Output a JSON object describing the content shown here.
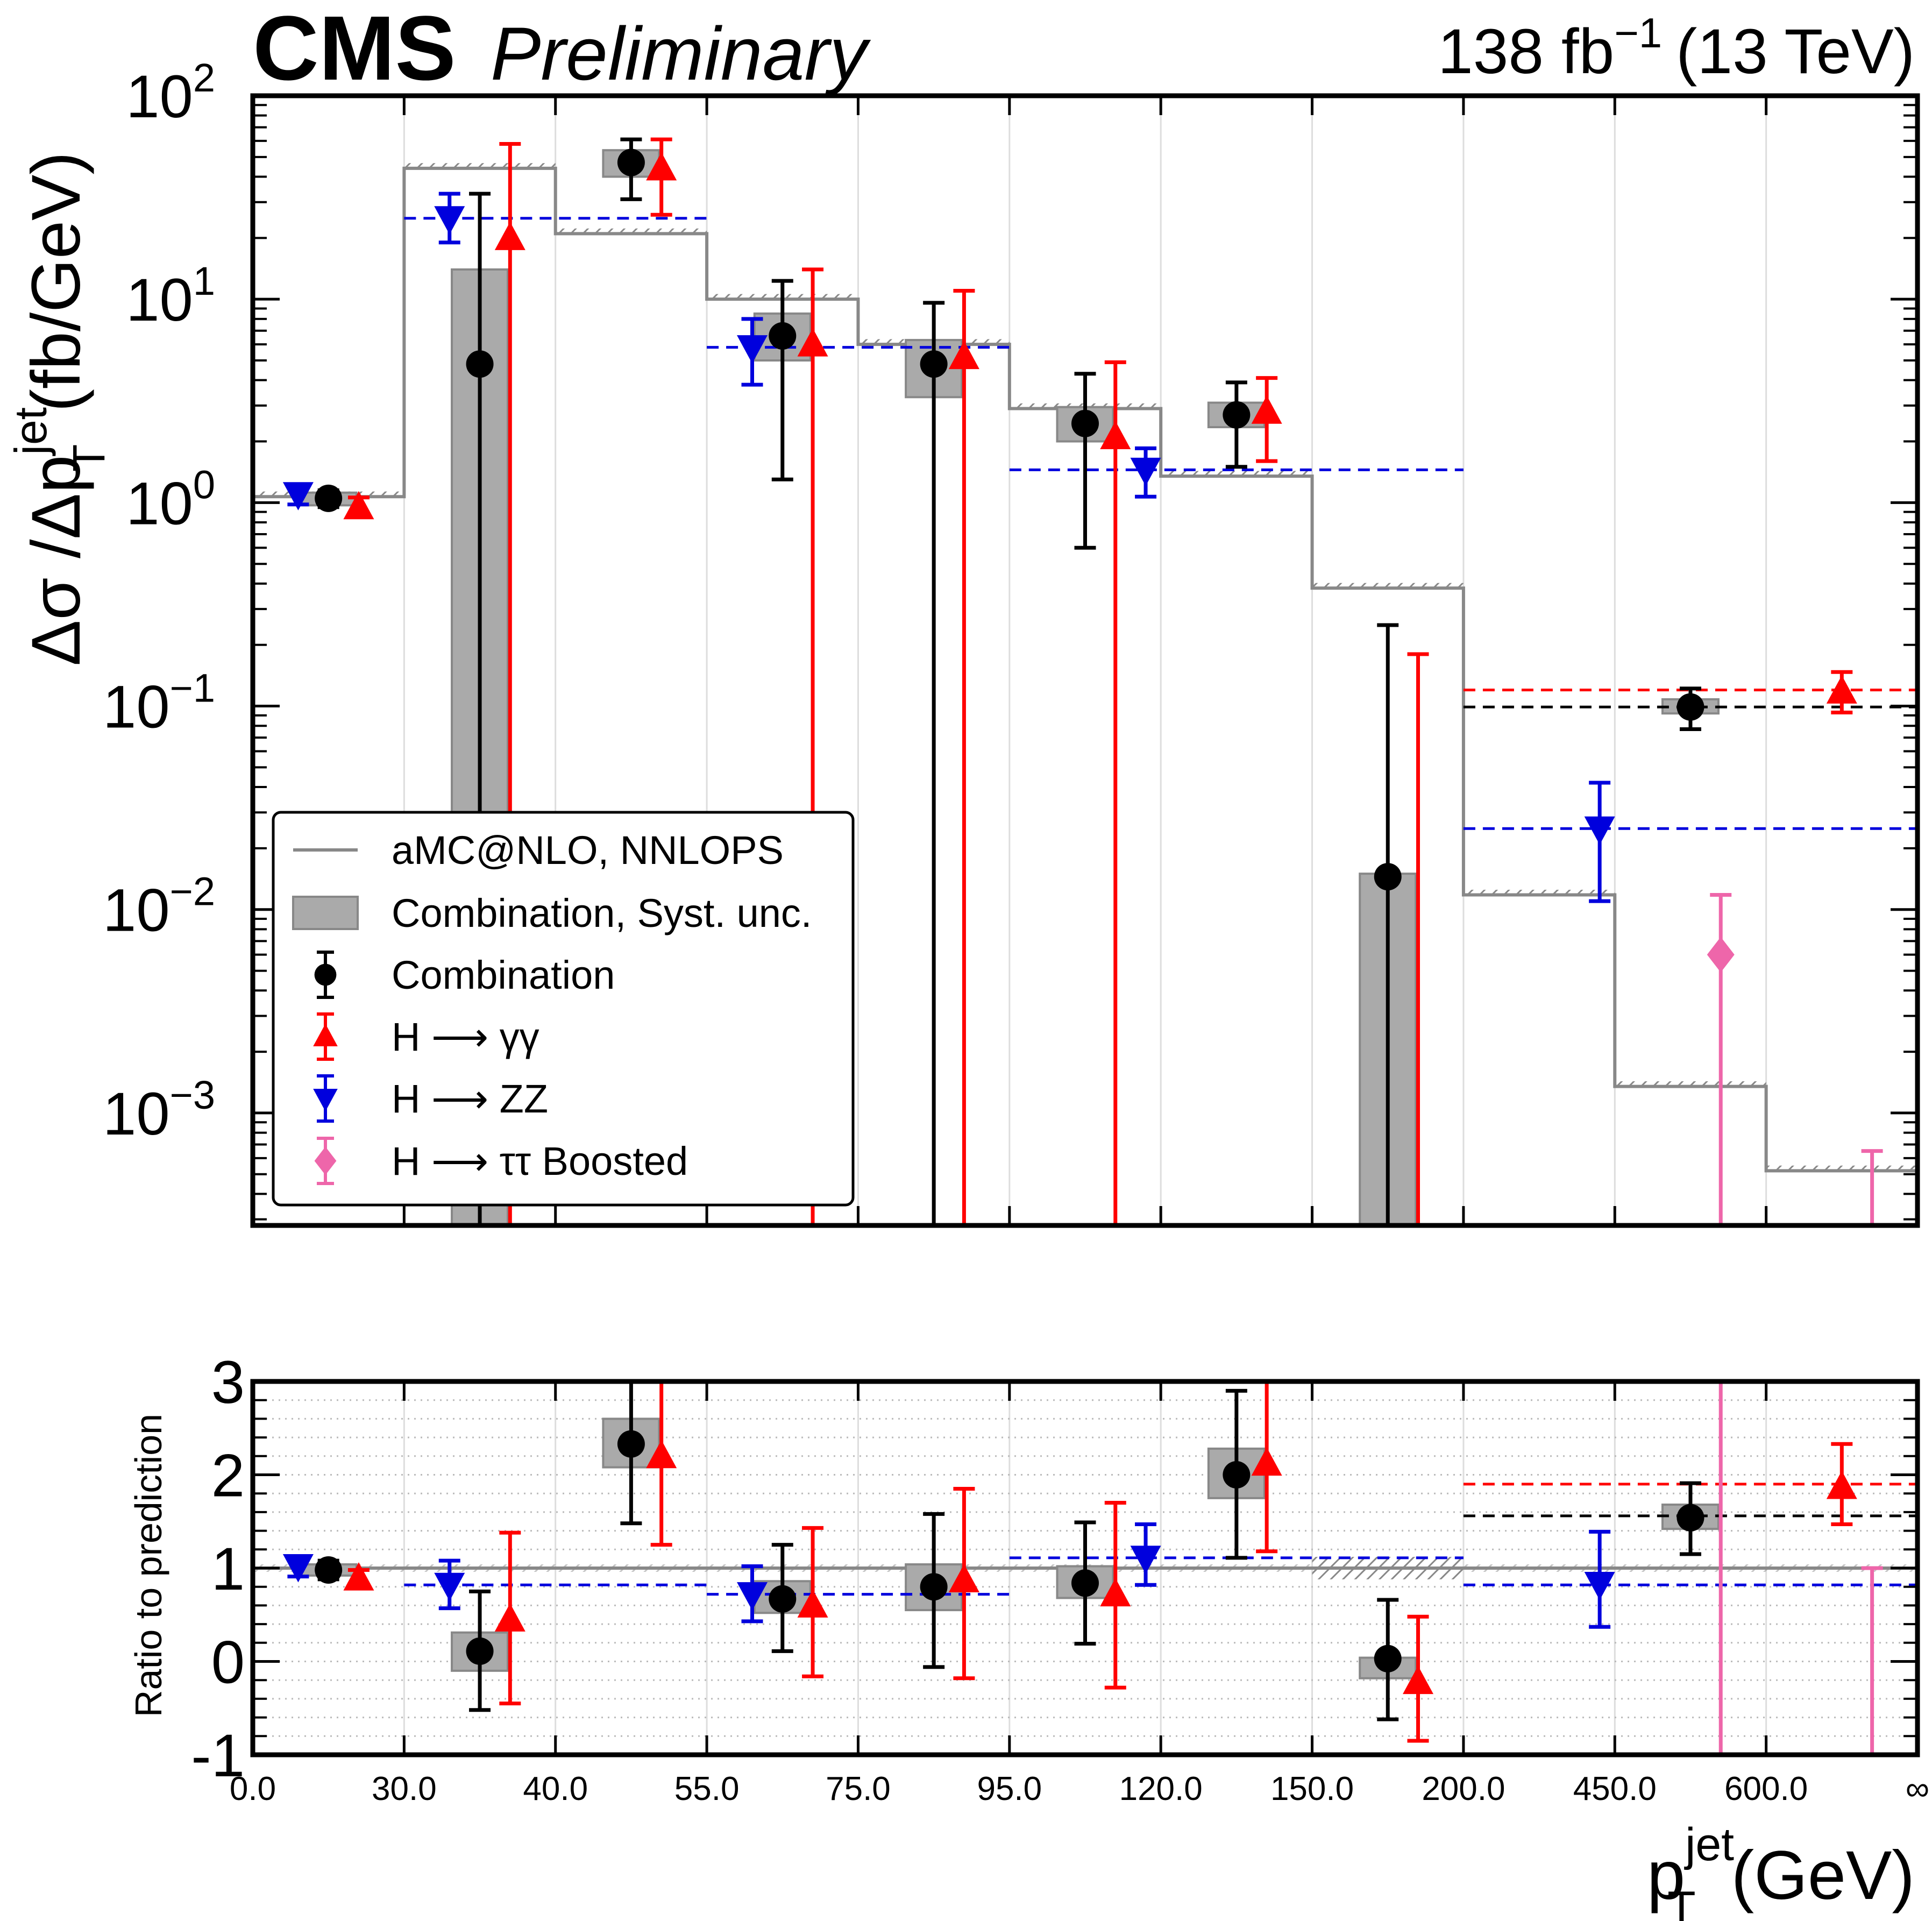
{
  "header": {
    "experiment": "CMS",
    "status": "Preliminary",
    "lumi": "138 fb",
    "lumi_exp": "−1",
    "energy": "(13 TeV)"
  },
  "colors": {
    "combination": "#000000",
    "hgg": "#ff0000",
    "hzz": "#0000dd",
    "htautau": "#ee66aa",
    "prediction": "#888888",
    "syst": "#aaaaaa"
  },
  "chart_data": [
    {
      "type": "line",
      "panel": "main",
      "yscale": "log",
      "ylim": [
        0.00028,
        100
      ],
      "ylabel_parts": {
        "main": "Δσ /Δp",
        "sup": "jet",
        "sub": "T",
        "unit": "(fb/GeV)"
      },
      "yticks": [
        {
          "value": 100,
          "mant": "10",
          "exp": "2"
        },
        {
          "value": 10,
          "mant": "10",
          "exp": "1"
        },
        {
          "value": 1,
          "mant": "10",
          "exp": "0"
        },
        {
          "value": 0.1,
          "mant": "10",
          "exp": "−1"
        },
        {
          "value": 0.01,
          "mant": "10",
          "exp": "−2"
        },
        {
          "value": 0.001,
          "mant": "10",
          "exp": "−3"
        }
      ],
      "bin_edges_labels": [
        "0.0",
        "30.0",
        "40.0",
        "55.0",
        "75.0",
        "95.0",
        "120.0",
        "150.0",
        "200.0",
        "450.0",
        "600.0",
        "∞"
      ],
      "prediction": {
        "name": "aMC@NLO, NNLOPS",
        "values": [
          1.07,
          44,
          21,
          10,
          6.0,
          2.9,
          1.35,
          0.38,
          0.0118,
          0.00135,
          0.00052
        ]
      },
      "series": [
        {
          "name": "Combination",
          "key": "combination",
          "marker": "circle",
          "points": [
            {
              "x": 0.5,
              "y": 1.05,
              "lo": 0.95,
              "hi": 1.15,
              "syst": [
                0.97,
                1.12
              ]
            },
            {
              "x": 1.5,
              "y": 4.8,
              "lo": 0.00028,
              "hi": 33,
              "syst": [
                0.00028,
                14
              ]
            },
            {
              "x": 2.5,
              "y": 47,
              "lo": 31,
              "hi": 61,
              "syst": [
                40,
                54
              ]
            },
            {
              "x": 3.5,
              "y": 6.6,
              "lo": 1.3,
              "hi": 12.3,
              "syst": [
                5.0,
                8.5
              ]
            },
            {
              "x": 4.5,
              "y": 4.8,
              "lo": 0.00028,
              "hi": 9.6,
              "syst": [
                3.3,
                6.3
              ]
            },
            {
              "x": 5.5,
              "y": 2.45,
              "lo": 0.6,
              "hi": 4.3,
              "syst": [
                2.0,
                2.95
              ]
            },
            {
              "x": 6.5,
              "y": 2.7,
              "lo": 1.5,
              "hi": 3.9,
              "syst": [
                2.35,
                3.1
              ]
            },
            {
              "x": 7.5,
              "y": 0.0145,
              "lo": 0.00028,
              "hi": 0.25,
              "syst": [
                0.00028,
                0.015
              ]
            },
            {
              "x": 9.5,
              "y": 0.099,
              "lo": 0.077,
              "hi": 0.122,
              "syst": [
                0.092,
                0.108
              ]
            }
          ],
          "dashed": [
            {
              "from": 8,
              "to": 11,
              "y": 0.099
            }
          ]
        },
        {
          "name": "H ⟶ γγ",
          "key": "hgg",
          "marker": "triangle-up",
          "points": [
            {
              "x": 0.7,
              "y": 0.95,
              "lo": 0.86,
              "hi": 1.06
            },
            {
              "x": 1.7,
              "y": 20,
              "lo": 0.00028,
              "hi": 58
            },
            {
              "x": 2.7,
              "y": 44,
              "lo": 26,
              "hi": 61
            },
            {
              "x": 3.7,
              "y": 6.0,
              "lo": 0.00028,
              "hi": 14
            },
            {
              "x": 4.7,
              "y": 5.2,
              "lo": 0.00028,
              "hi": 11
            },
            {
              "x": 5.7,
              "y": 2.1,
              "lo": 0.00028,
              "hi": 4.9
            },
            {
              "x": 6.7,
              "y": 2.8,
              "lo": 1.6,
              "hi": 4.1
            },
            {
              "x": 7.7,
              "y": 0.00028,
              "lo": 0.00028,
              "hi": 0.18
            },
            {
              "x": 10.5,
              "y": 0.118,
              "lo": 0.093,
              "hi": 0.147
            }
          ],
          "dashed": [
            {
              "from": 8,
              "to": 11,
              "y": 0.12
            }
          ]
        },
        {
          "name": "H ⟶  ZZ",
          "key": "hzz",
          "marker": "triangle-down",
          "points": [
            {
              "x": 0.3,
              "y": 1.1,
              "lo": 0.98,
              "hi": 1.22
            },
            {
              "x": 1.3,
              "y": 25,
              "lo": 19,
              "hi": 33
            },
            {
              "x": 3.3,
              "y": 5.8,
              "lo": 3.8,
              "hi": 8.0
            },
            {
              "x": 5.9,
              "y": 1.45,
              "lo": 1.07,
              "hi": 1.85
            },
            {
              "x": 8.9,
              "y": 0.025,
              "lo": 0.011,
              "hi": 0.042
            }
          ],
          "dashed": [
            {
              "from": 1,
              "to": 3,
              "y": 25
            },
            {
              "from": 3,
              "to": 5,
              "y": 5.8
            },
            {
              "from": 5,
              "to": 8,
              "y": 1.45
            },
            {
              "from": 8,
              "to": 11,
              "y": 0.025
            }
          ]
        },
        {
          "name": "H ⟶ ττ Boosted",
          "key": "htautau",
          "marker": "diamond",
          "points": [
            {
              "x": 9.7,
              "y": 0.006,
              "lo": 0.00028,
              "hi": 0.0118
            },
            {
              "x": 10.7,
              "y": null,
              "lo": 0.00028,
              "hi": 0.00065
            }
          ],
          "dashed": []
        }
      ],
      "legend": {
        "position": "lower-left",
        "entries": [
          "aMC@NLO, NNLOPS",
          "Combination, Syst. unc.",
          "Combination",
          "H ⟶ γγ",
          "H ⟶  ZZ",
          "H ⟶ ττ Boosted"
        ]
      }
    },
    {
      "type": "line",
      "panel": "ratio",
      "ylabel": "Ratio to prediction",
      "ylim": [
        -1,
        3
      ],
      "yticks": [
        "3",
        "2",
        "1",
        "0",
        "-1"
      ],
      "xlabel_parts": {
        "main": "p",
        "sup": "jet",
        "sub": "T",
        "unit": "(GeV)"
      },
      "series": [
        {
          "name": "Combination",
          "key": "combination",
          "marker": "circle",
          "points": [
            {
              "x": 0.5,
              "y": 0.98,
              "lo": 0.88,
              "hi": 1.08,
              "syst": [
                0.92,
                1.04
              ]
            },
            {
              "x": 1.5,
              "y": 0.11,
              "lo": -0.52,
              "hi": 0.75,
              "syst": [
                -0.1,
                0.31
              ]
            },
            {
              "x": 2.5,
              "y": 2.33,
              "lo": 1.48,
              "hi": 3.0,
              "syst": [
                2.08,
                2.6
              ]
            },
            {
              "x": 3.5,
              "y": 0.67,
              "lo": 0.11,
              "hi": 1.25,
              "syst": [
                0.52,
                0.86
              ]
            },
            {
              "x": 4.5,
              "y": 0.8,
              "lo": -0.06,
              "hi": 1.58,
              "syst": [
                0.55,
                1.04
              ]
            },
            {
              "x": 5.5,
              "y": 0.84,
              "lo": 0.19,
              "hi": 1.49,
              "syst": [
                0.68,
                1.02
              ]
            },
            {
              "x": 6.5,
              "y": 2.0,
              "lo": 1.11,
              "hi": 2.9,
              "syst": [
                1.75,
                2.28
              ]
            },
            {
              "x": 7.5,
              "y": 0.03,
              "lo": -0.62,
              "hi": 0.66,
              "syst": [
                -0.18,
                0.04
              ]
            },
            {
              "x": 9.5,
              "y": 1.54,
              "lo": 1.15,
              "hi": 1.91,
              "syst": [
                1.42,
                1.68
              ]
            }
          ],
          "dashed": [
            {
              "from": 8,
              "to": 11,
              "y": 1.56
            }
          ]
        },
        {
          "name": "H ⟶ γγ",
          "key": "hgg",
          "marker": "triangle-up",
          "points": [
            {
              "x": 0.7,
              "y": 0.89,
              "lo": 0.81,
              "hi": 0.98
            },
            {
              "x": 1.7,
              "y": 0.45,
              "lo": -0.45,
              "hi": 1.38
            },
            {
              "x": 2.7,
              "y": 2.2,
              "lo": 1.25,
              "hi": 3.0
            },
            {
              "x": 3.7,
              "y": 0.6,
              "lo": -0.16,
              "hi": 1.43
            },
            {
              "x": 4.7,
              "y": 0.87,
              "lo": -0.18,
              "hi": 1.85
            },
            {
              "x": 5.7,
              "y": 0.72,
              "lo": -0.28,
              "hi": 1.7
            },
            {
              "x": 6.7,
              "y": 2.12,
              "lo": 1.18,
              "hi": 3.0
            },
            {
              "x": 7.7,
              "y": -0.22,
              "lo": -0.85,
              "hi": 0.48
            },
            {
              "x": 10.5,
              "y": 1.87,
              "lo": 1.47,
              "hi": 2.33
            }
          ],
          "dashed": [
            {
              "from": 8,
              "to": 11,
              "y": 1.9
            }
          ]
        },
        {
          "name": "H ⟶  ZZ",
          "key": "hzz",
          "marker": "triangle-down",
          "points": [
            {
              "x": 0.3,
              "y": 1.02,
              "lo": 0.91,
              "hi": 1.13
            },
            {
              "x": 1.3,
              "y": 0.82,
              "lo": 0.57,
              "hi": 1.08
            },
            {
              "x": 3.3,
              "y": 0.72,
              "lo": 0.43,
              "hi": 1.02
            },
            {
              "x": 5.9,
              "y": 1.11,
              "lo": 0.82,
              "hi": 1.47
            },
            {
              "x": 8.9,
              "y": 0.83,
              "lo": 0.37,
              "hi": 1.39
            }
          ],
          "dashed": [
            {
              "from": 1,
              "to": 3,
              "y": 0.82
            },
            {
              "from": 3,
              "to": 5,
              "y": 0.72
            },
            {
              "from": 5,
              "to": 8,
              "y": 1.11
            },
            {
              "from": 8,
              "to": 11,
              "y": 0.82
            }
          ]
        },
        {
          "name": "H ⟶ ττ Boosted",
          "key": "htautau",
          "marker": "diamond",
          "points": [
            {
              "x": 9.7,
              "y": null,
              "lo": -1,
              "hi": 3
            },
            {
              "x": 10.7,
              "y": null,
              "lo": -1,
              "hi": 1.0
            }
          ],
          "dashed": []
        }
      ]
    }
  ]
}
